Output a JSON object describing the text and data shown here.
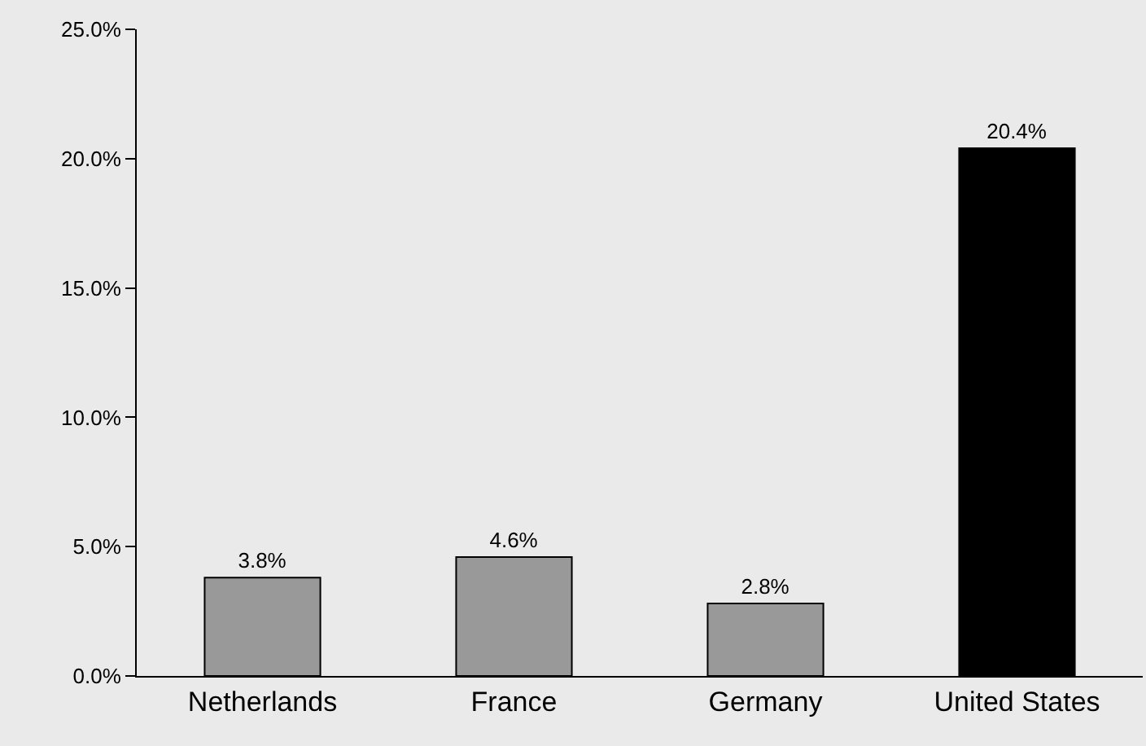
{
  "chart_data": {
    "type": "bar",
    "categories": [
      "Netherlands",
      "France",
      "Germany",
      "United States"
    ],
    "values": [
      3.8,
      4.6,
      2.8,
      20.4
    ],
    "colors": [
      "#999999",
      "#999999",
      "#999999",
      "#000000"
    ],
    "value_labels": [
      "3.8%",
      "4.6%",
      "2.8%",
      "20.4%"
    ],
    "ylim": [
      0,
      25
    ],
    "yticks": [
      {
        "value": 0,
        "label": "0.0%"
      },
      {
        "value": 5,
        "label": "5.0%"
      },
      {
        "value": 10,
        "label": "10.0%"
      },
      {
        "value": 15,
        "label": "15.0%"
      },
      {
        "value": 20,
        "label": "20.0%"
      },
      {
        "value": 25,
        "label": "25.0%"
      }
    ],
    "grid": false
  }
}
